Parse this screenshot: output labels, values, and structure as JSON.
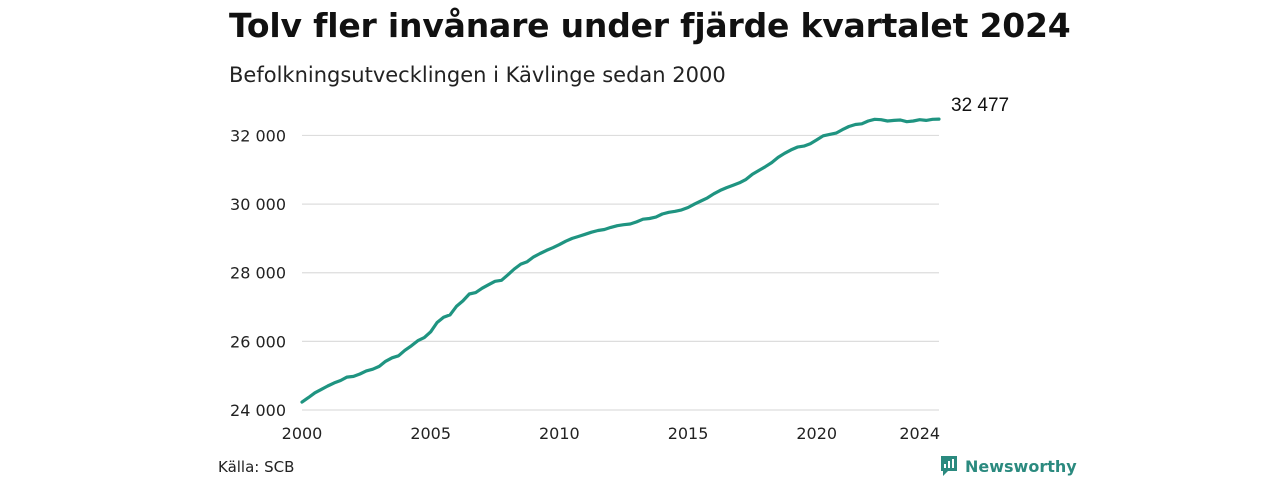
{
  "title": "Tolv fler invånare under fjärde kvartalet 2024",
  "subtitle": "Befolkningsutvecklingen i Kävlinge sedan 2000",
  "source": "Källa: SCB",
  "brand": "Newsworthy",
  "colors": {
    "line": "#1f9481",
    "grid": "#dddddd",
    "brand": "#2b8a7f"
  },
  "chart_data": {
    "type": "line",
    "title": "",
    "xlabel": "",
    "ylabel": "",
    "x_ticks": [
      2000,
      2005,
      2010,
      2015,
      2020,
      2024
    ],
    "y_ticks": [
      24000,
      26000,
      28000,
      30000,
      32000
    ],
    "y_tick_labels": [
      "24 000",
      "26 000",
      "28 000",
      "30 000",
      "32 000"
    ],
    "xlim": [
      2000,
      2024.75
    ],
    "ylim": [
      24000,
      32800
    ],
    "end_label": "32 477",
    "grid": true,
    "x": [
      2000.0,
      2000.25,
      2000.5,
      2000.75,
      2001.0,
      2001.25,
      2001.5,
      2001.75,
      2002.0,
      2002.25,
      2002.5,
      2002.75,
      2003.0,
      2003.25,
      2003.5,
      2003.75,
      2004.0,
      2004.25,
      2004.5,
      2004.75,
      2005.0,
      2005.25,
      2005.5,
      2005.75,
      2006.0,
      2006.25,
      2006.5,
      2006.75,
      2007.0,
      2007.25,
      2007.5,
      2007.75,
      2008.0,
      2008.25,
      2008.5,
      2008.75,
      2009.0,
      2009.25,
      2009.5,
      2009.75,
      2010.0,
      2010.25,
      2010.5,
      2010.75,
      2011.0,
      2011.25,
      2011.5,
      2011.75,
      2012.0,
      2012.25,
      2012.5,
      2012.75,
      2013.0,
      2013.25,
      2013.5,
      2013.75,
      2014.0,
      2014.25,
      2014.5,
      2014.75,
      2015.0,
      2015.25,
      2015.5,
      2015.75,
      2016.0,
      2016.25,
      2016.5,
      2016.75,
      2017.0,
      2017.25,
      2017.5,
      2017.75,
      2018.0,
      2018.25,
      2018.5,
      2018.75,
      2019.0,
      2019.25,
      2019.5,
      2019.75,
      2020.0,
      2020.25,
      2020.5,
      2020.75,
      2021.0,
      2021.25,
      2021.5,
      2021.75,
      2022.0,
      2022.25,
      2022.5,
      2022.75,
      2023.0,
      2023.25,
      2023.5,
      2023.75,
      2024.0,
      2024.25,
      2024.5,
      2024.75
    ],
    "series": [
      {
        "values": [
          24230,
          24360,
          24500,
          24600,
          24700,
          24790,
          24860,
          24960,
          24980,
          25050,
          25140,
          25190,
          25270,
          25420,
          25520,
          25580,
          25740,
          25870,
          26020,
          26110,
          26280,
          26550,
          26700,
          26770,
          27020,
          27180,
          27380,
          27420,
          27550,
          27650,
          27750,
          27780,
          27940,
          28110,
          28250,
          28320,
          28460,
          28560,
          28650,
          28730,
          28820,
          28920,
          29000,
          29060,
          29120,
          29180,
          29230,
          29260,
          29320,
          29370,
          29400,
          29420,
          29480,
          29560,
          29580,
          29620,
          29710,
          29760,
          29790,
          29830,
          29900,
          30000,
          30090,
          30180,
          30300,
          30400,
          30480,
          30550,
          30620,
          30720,
          30870,
          30980,
          31090,
          31210,
          31360,
          31480,
          31580,
          31660,
          31690,
          31760,
          31870,
          31990,
          32030,
          32070,
          32170,
          32260,
          32320,
          32340,
          32420,
          32470,
          32460,
          32420,
          32440,
          32450,
          32400,
          32420,
          32460,
          32440,
          32470,
          32477
        ]
      }
    ]
  }
}
